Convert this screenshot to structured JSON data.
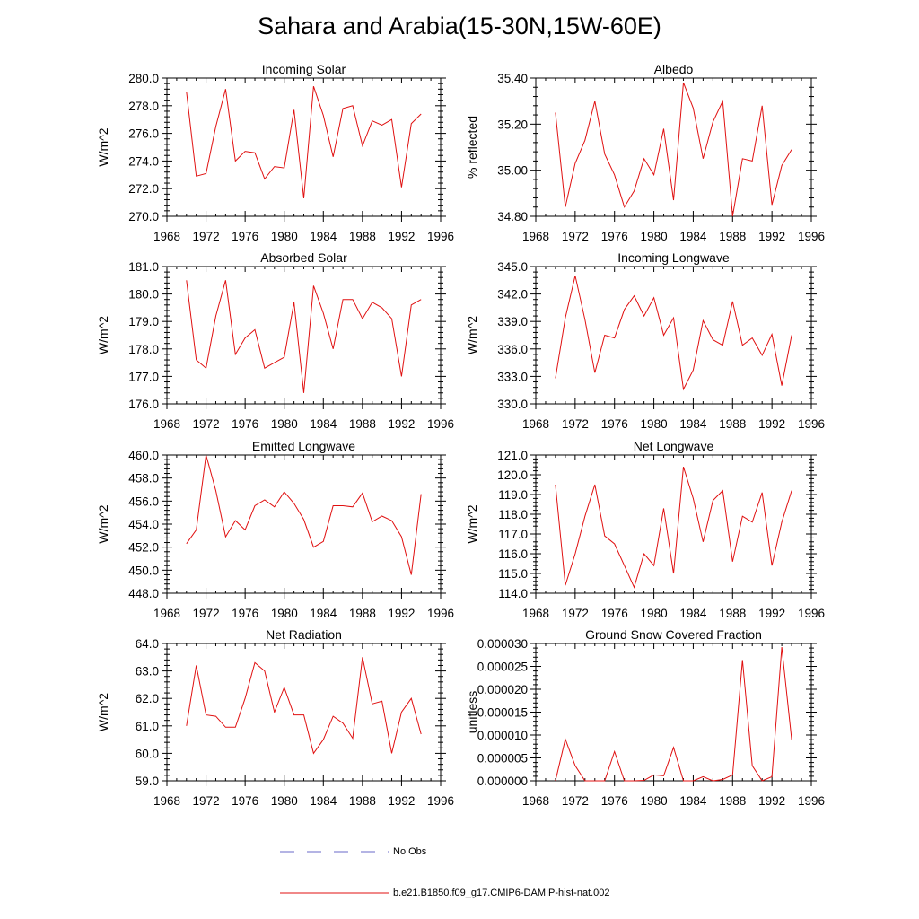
{
  "title": "Sahara and Arabia(15-30N,15W-60E)",
  "legend": [
    {
      "label": "No Obs",
      "color": "#6a6ac8",
      "style": "dashed"
    },
    {
      "label": "b.e21.B1850.f09_g17.CMIP6-DAMIP-hist-nat.002",
      "color": "#e01010",
      "style": "solid"
    }
  ],
  "chart_data": [
    {
      "type": "line",
      "title": "Incoming Solar",
      "ylabel": "W/m^2",
      "xlim": [
        1968,
        1996
      ],
      "ylim": [
        270,
        280
      ],
      "xticks": [
        "1968",
        "1972",
        "1976",
        "1980",
        "1984",
        "1988",
        "1992",
        "1996"
      ],
      "yticks": [
        "270.0",
        "272.0",
        "274.0",
        "276.0",
        "278.0",
        "280.0"
      ],
      "x": [
        1970,
        1971,
        1972,
        1973,
        1974,
        1975,
        1976,
        1977,
        1978,
        1979,
        1980,
        1981,
        1982,
        1983,
        1984,
        1985,
        1986,
        1987,
        1988,
        1989,
        1990,
        1991,
        1992,
        1993,
        1994
      ],
      "series": [
        {
          "color": "#e01010",
          "values": [
            279.0,
            272.9,
            273.1,
            276.5,
            279.2,
            274.0,
            274.7,
            274.6,
            272.7,
            273.6,
            273.5,
            277.7,
            271.3,
            279.4,
            277.3,
            274.3,
            277.8,
            278.0,
            275.1,
            276.9,
            276.6,
            277.0,
            272.1,
            276.7,
            277.4
          ]
        }
      ]
    },
    {
      "type": "line",
      "title": "Albedo",
      "ylabel": "% reflected",
      "xlim": [
        1968,
        1996
      ],
      "ylim": [
        34.8,
        35.4
      ],
      "xticks": [
        "1968",
        "1972",
        "1976",
        "1980",
        "1984",
        "1988",
        "1992",
        "1996"
      ],
      "yticks": [
        "34.80",
        "35.00",
        "35.20",
        "35.40"
      ],
      "x": [
        1970,
        1971,
        1972,
        1973,
        1974,
        1975,
        1976,
        1977,
        1978,
        1979,
        1980,
        1981,
        1982,
        1983,
        1984,
        1985,
        1986,
        1987,
        1988,
        1989,
        1990,
        1991,
        1992,
        1993,
        1994
      ],
      "series": [
        {
          "color": "#e01010",
          "values": [
            35.25,
            34.84,
            35.03,
            35.13,
            35.3,
            35.07,
            34.98,
            34.84,
            34.91,
            35.05,
            34.98,
            35.18,
            34.87,
            35.38,
            35.27,
            35.05,
            35.21,
            35.3,
            34.8,
            35.05,
            35.04,
            35.28,
            34.85,
            35.02,
            35.09
          ]
        }
      ]
    },
    {
      "type": "line",
      "title": "Absorbed Solar",
      "ylabel": "W/m^2",
      "xlim": [
        1968,
        1996
      ],
      "ylim": [
        176,
        181
      ],
      "xticks": [
        "1968",
        "1972",
        "1976",
        "1980",
        "1984",
        "1988",
        "1992",
        "1996"
      ],
      "yticks": [
        "176.0",
        "177.0",
        "178.0",
        "179.0",
        "180.0",
        "181.0"
      ],
      "x": [
        1970,
        1971,
        1972,
        1973,
        1974,
        1975,
        1976,
        1977,
        1978,
        1979,
        1980,
        1981,
        1982,
        1983,
        1984,
        1985,
        1986,
        1987,
        1988,
        1989,
        1990,
        1991,
        1992,
        1993,
        1994
      ],
      "series": [
        {
          "color": "#e01010",
          "values": [
            180.5,
            177.6,
            177.3,
            179.2,
            180.5,
            177.8,
            178.4,
            178.7,
            177.3,
            177.5,
            177.7,
            179.7,
            176.4,
            180.3,
            179.3,
            178.0,
            179.8,
            179.8,
            179.1,
            179.7,
            179.5,
            179.1,
            177.0,
            179.6,
            179.8
          ]
        }
      ]
    },
    {
      "type": "line",
      "title": "Incoming Longwave",
      "ylabel": "W/m^2",
      "xlim": [
        1968,
        1996
      ],
      "ylim": [
        330,
        345
      ],
      "xticks": [
        "1968",
        "1972",
        "1976",
        "1980",
        "1984",
        "1988",
        "1992",
        "1996"
      ],
      "yticks": [
        "330.0",
        "333.0",
        "336.0",
        "339.0",
        "342.0",
        "345.0"
      ],
      "x": [
        1970,
        1971,
        1972,
        1973,
        1974,
        1975,
        1976,
        1977,
        1978,
        1979,
        1980,
        1981,
        1982,
        1983,
        1984,
        1985,
        1986,
        1987,
        1988,
        1989,
        1990,
        1991,
        1992,
        1993,
        1994
      ],
      "series": [
        {
          "color": "#e01010",
          "values": [
            332.8,
            339.4,
            344.0,
            339.2,
            333.4,
            337.5,
            337.2,
            340.3,
            341.8,
            339.6,
            341.6,
            337.5,
            339.4,
            331.6,
            333.7,
            339.1,
            337.0,
            336.4,
            341.2,
            336.4,
            337.2,
            335.3,
            337.6,
            332.0,
            337.5
          ]
        }
      ]
    },
    {
      "type": "line",
      "title": "Emitted Longwave",
      "ylabel": "W/m^2",
      "xlim": [
        1968,
        1996
      ],
      "ylim": [
        448,
        460
      ],
      "xticks": [
        "1968",
        "1972",
        "1976",
        "1980",
        "1984",
        "1988",
        "1992",
        "1996"
      ],
      "yticks": [
        "448.0",
        "450.0",
        "452.0",
        "454.0",
        "456.0",
        "458.0",
        "460.0"
      ],
      "x": [
        1970,
        1971,
        1972,
        1973,
        1974,
        1975,
        1976,
        1977,
        1978,
        1979,
        1980,
        1981,
        1982,
        1983,
        1984,
        1985,
        1986,
        1987,
        1988,
        1989,
        1990,
        1991,
        1992,
        1993,
        1994
      ],
      "series": [
        {
          "color": "#e01010",
          "values": [
            452.3,
            453.5,
            460.0,
            456.9,
            452.9,
            454.3,
            453.5,
            455.6,
            456.1,
            455.5,
            456.8,
            455.8,
            454.4,
            452.0,
            452.5,
            455.6,
            455.6,
            455.5,
            456.7,
            454.2,
            454.7,
            454.3,
            452.9,
            449.6,
            456.6
          ]
        }
      ]
    },
    {
      "type": "line",
      "title": "Net Longwave",
      "ylabel": "W/m^2",
      "xlim": [
        1968,
        1996
      ],
      "ylim": [
        114,
        121
      ],
      "xticks": [
        "1968",
        "1972",
        "1976",
        "1980",
        "1984",
        "1988",
        "1992",
        "1996"
      ],
      "yticks": [
        "114.0",
        "115.0",
        "116.0",
        "117.0",
        "118.0",
        "119.0",
        "120.0",
        "121.0"
      ],
      "x": [
        1970,
        1971,
        1972,
        1973,
        1974,
        1975,
        1976,
        1977,
        1978,
        1979,
        1980,
        1981,
        1982,
        1983,
        1984,
        1985,
        1986,
        1987,
        1988,
        1989,
        1990,
        1991,
        1992,
        1993,
        1994
      ],
      "series": [
        {
          "color": "#e01010",
          "values": [
            119.5,
            114.4,
            116.0,
            117.9,
            119.5,
            116.9,
            116.5,
            115.4,
            114.3,
            116.0,
            115.4,
            118.3,
            115.0,
            120.4,
            118.8,
            116.6,
            118.7,
            119.2,
            115.6,
            117.9,
            117.6,
            119.1,
            115.4,
            117.6,
            119.2
          ]
        }
      ]
    },
    {
      "type": "line",
      "title": "Net Radiation",
      "ylabel": "W/m^2",
      "xlim": [
        1968,
        1996
      ],
      "ylim": [
        59,
        64
      ],
      "xticks": [
        "1968",
        "1972",
        "1976",
        "1980",
        "1984",
        "1988",
        "1992",
        "1996"
      ],
      "yticks": [
        "59.0",
        "60.0",
        "61.0",
        "62.0",
        "63.0",
        "64.0"
      ],
      "x": [
        1970,
        1971,
        1972,
        1973,
        1974,
        1975,
        1976,
        1977,
        1978,
        1979,
        1980,
        1981,
        1982,
        1983,
        1984,
        1985,
        1986,
        1987,
        1988,
        1989,
        1990,
        1991,
        1992,
        1993,
        1994
      ],
      "series": [
        {
          "color": "#e01010",
          "values": [
            61.0,
            63.2,
            61.4,
            61.35,
            60.95,
            60.95,
            62.0,
            63.3,
            63.0,
            61.5,
            62.4,
            61.4,
            61.4,
            60.0,
            60.5,
            61.35,
            61.1,
            60.55,
            63.5,
            61.8,
            61.9,
            60.0,
            61.5,
            62.0,
            60.7
          ]
        }
      ]
    },
    {
      "type": "line",
      "title": "Ground Snow Covered Fraction",
      "ylabel": "unitless",
      "xlim": [
        1968,
        1996
      ],
      "ylim": [
        0,
        3e-05
      ],
      "xticks": [
        "1968",
        "1972",
        "1976",
        "1980",
        "1984",
        "1988",
        "1992",
        "1996"
      ],
      "yticks": [
        "0.000000",
        "0.000005",
        "0.000010",
        "0.000015",
        "0.000020",
        "0.000025",
        "0.000030"
      ],
      "x": [
        1970,
        1971,
        1972,
        1973,
        1974,
        1975,
        1976,
        1977,
        1978,
        1979,
        1980,
        1981,
        1982,
        1983,
        1984,
        1985,
        1986,
        1987,
        1988,
        1989,
        1990,
        1991,
        1992,
        1993,
        1994
      ],
      "series": [
        {
          "color": "#e01010",
          "values": [
            0.0,
            9.1e-06,
            3.3e-06,
            0.0,
            0.0,
            0.0,
            6.4e-06,
            0.0,
            0.0,
            1e-07,
            1.3e-06,
            1.1e-06,
            7.3e-06,
            0.0,
            0.0,
            9e-07,
            0.0,
            3e-07,
            1.3e-06,
            2.64e-05,
            3.3e-06,
            0.0,
            9e-07,
            2.92e-05,
            9e-06
          ]
        }
      ]
    }
  ]
}
